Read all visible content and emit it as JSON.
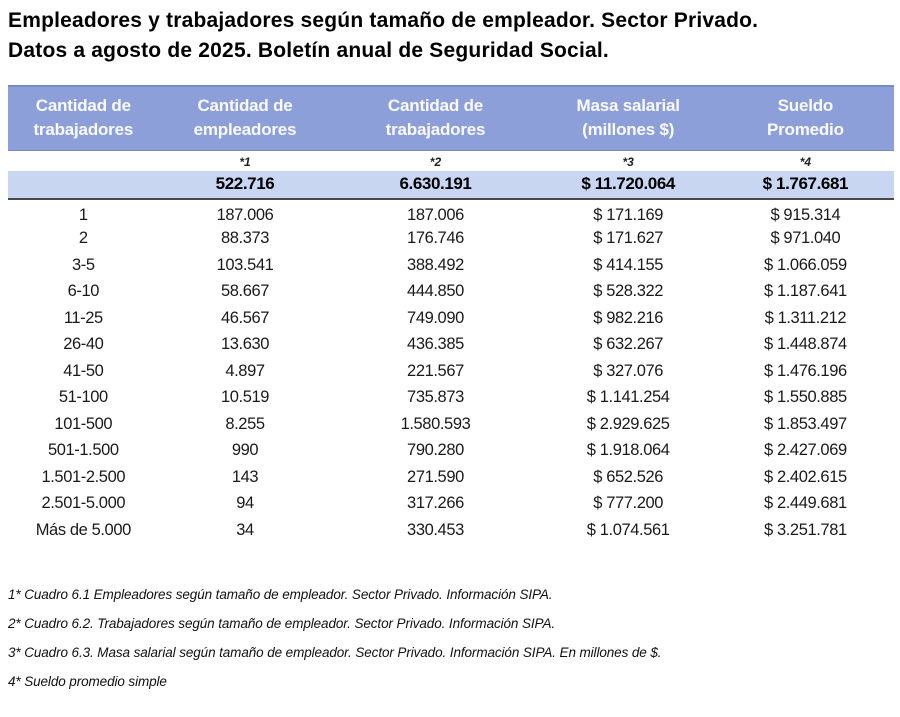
{
  "title": {
    "line1": "Empleadores y trabajadores según tamaño de empleador. Sector Privado.",
    "line2": "Datos a agosto de 2025. Boletín anual de Seguridad Social."
  },
  "colors": {
    "header_bg": "#8C9FD8",
    "header_border": "#7789C8",
    "header_text": "#FAFAFF",
    "totals_bg": "#C9D6F1",
    "divider_line": "#4A4A4A"
  },
  "chart_data": {
    "type": "table",
    "columns": [
      {
        "label_line1": "Cantidad de",
        "label_line2": "trabajadores",
        "footnote_marker": ""
      },
      {
        "label_line1": "Cantidad de",
        "label_line2": "empleadores",
        "footnote_marker": "*1"
      },
      {
        "label_line1": "Cantidad de",
        "label_line2": "trabajadores",
        "footnote_marker": "*2"
      },
      {
        "label_line1": "Masa salarial",
        "label_line2": "(millones $)",
        "footnote_marker": "*3"
      },
      {
        "label_line1": "Sueldo",
        "label_line2": "Promedio",
        "footnote_marker": "*4"
      }
    ],
    "totals_row": {
      "label": "",
      "empleadores": "522.716",
      "trabajadores": "6.630.191",
      "masa_salarial": "$ 11.720.064",
      "sueldo_promedio": "$ 1.767.681"
    },
    "rows": [
      [
        "1",
        "187.006",
        "187.006",
        "$ 171.169",
        "$ 915.314"
      ],
      [
        "2",
        "88.373",
        "176.746",
        "$ 171.627",
        "$ 971.040"
      ],
      [
        "3-5",
        "103.541",
        "388.492",
        "$ 414.155",
        "$ 1.066.059"
      ],
      [
        "6-10",
        "58.667",
        "444.850",
        "$ 528.322",
        "$ 1.187.641"
      ],
      [
        "11-25",
        "46.567",
        "749.090",
        "$ 982.216",
        "$ 1.311.212"
      ],
      [
        "26-40",
        "13.630",
        "436.385",
        "$ 632.267",
        "$ 1.448.874"
      ],
      [
        "41-50",
        "4.897",
        "221.567",
        "$ 327.076",
        "$ 1.476.196"
      ],
      [
        "51-100",
        "10.519",
        "735.873",
        "$ 1.141.254",
        "$ 1.550.885"
      ],
      [
        "101-500",
        "8.255",
        "1.580.593",
        "$ 2.929.625",
        "$ 1.853.497"
      ],
      [
        "501-1.500",
        "990",
        "790.280",
        "$ 1.918.064",
        "$ 2.427.069"
      ],
      [
        "1.501-2.500",
        "143",
        "271.590",
        "$ 652.526",
        "$ 2.402.615"
      ],
      [
        "2.501-5.000",
        "94",
        "317.266",
        "$ 777.200",
        "$ 2.449.681"
      ],
      [
        "Más de 5.000",
        "34",
        "330.453",
        "$ 1.074.561",
        "$ 3.251.781"
      ]
    ],
    "footnotes": [
      "1* Cuadro 6.1 Empleadores según tamaño de empleador. Sector Privado. Información SIPA.",
      "2* Cuadro 6.2. Trabajadores según tamaño de empleador. Sector Privado. Información SIPA.",
      "3* Cuadro 6.3. Masa salarial según tamaño de empleador. Sector Privado. Información SIPA. En millones de $.",
      "4* Sueldo promedio simple"
    ]
  }
}
